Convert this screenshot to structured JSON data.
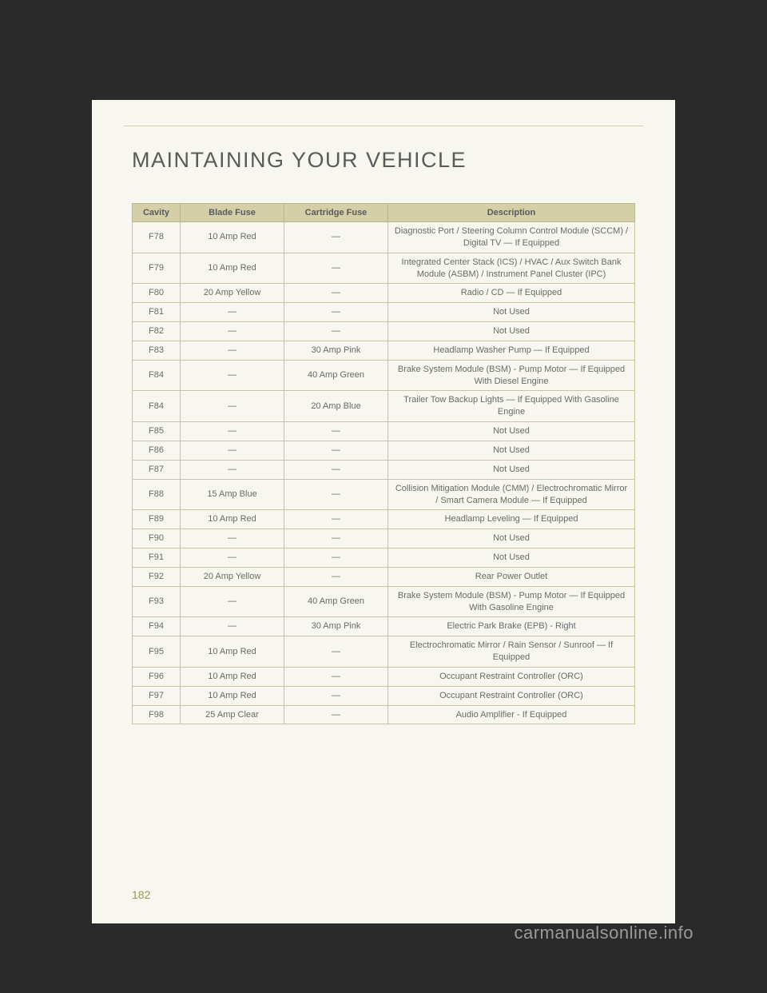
{
  "page": {
    "title": "MAINTAINING YOUR VEHICLE",
    "number": "182",
    "watermark": "carmanualsonline.info"
  },
  "table": {
    "columns": [
      "Cavity",
      "Blade Fuse",
      "Cartridge Fuse",
      "Description"
    ],
    "rows": [
      [
        "F78",
        "10 Amp Red",
        "—",
        "Diagnostic Port / Steering Column Control Module (SCCM) / Digital TV — If Equipped"
      ],
      [
        "F79",
        "10 Amp Red",
        "—",
        "Integrated Center Stack (ICS) / HVAC / Aux Switch Bank Module (ASBM) / Instrument Panel Cluster (IPC)"
      ],
      [
        "F80",
        "20 Amp Yellow",
        "—",
        "Radio / CD — If Equipped"
      ],
      [
        "F81",
        "—",
        "—",
        "Not Used"
      ],
      [
        "F82",
        "—",
        "—",
        "Not Used"
      ],
      [
        "F83",
        "—",
        "30 Amp Pink",
        "Headlamp Washer Pump — If Equipped"
      ],
      [
        "F84",
        "—",
        "40 Amp Green",
        "Brake System Module (BSM) - Pump Motor — If Equipped With Diesel Engine"
      ],
      [
        "F84",
        "—",
        "20 Amp Blue",
        "Trailer Tow Backup Lights — If Equipped With Gasoline Engine"
      ],
      [
        "F85",
        "—",
        "—",
        "Not Used"
      ],
      [
        "F86",
        "—",
        "—",
        "Not Used"
      ],
      [
        "F87",
        "—",
        "—",
        "Not Used"
      ],
      [
        "F88",
        "15 Amp Blue",
        "—",
        "Collision Mitigation Module (CMM) / Electrochromatic Mirror / Smart Camera Module — If Equipped"
      ],
      [
        "F89",
        "10 Amp Red",
        "—",
        "Headlamp Leveling — If Equipped"
      ],
      [
        "F90",
        "—",
        "—",
        "Not Used"
      ],
      [
        "F91",
        "—",
        "—",
        "Not Used"
      ],
      [
        "F92",
        "20 Amp Yellow",
        "—",
        "Rear Power Outlet"
      ],
      [
        "F93",
        "—",
        "40 Amp Green",
        "Brake System Module (BSM) - Pump Motor — If Equipped With Gasoline Engine"
      ],
      [
        "F94",
        "—",
        "30 Amp Pink",
        "Electric Park Brake (EPB) - Right"
      ],
      [
        "F95",
        "10 Amp Red",
        "—",
        "Electrochromatic Mirror / Rain Sensor / Sunroof — If Equipped"
      ],
      [
        "F96",
        "10 Amp Red",
        "—",
        "Occupant Restraint Controller (ORC)"
      ],
      [
        "F97",
        "10 Amp Red",
        "—",
        "Occupant Restraint Controller (ORC)"
      ],
      [
        "F98",
        "25 Amp Clear",
        "—",
        "Audio Amplifier - If Equipped"
      ]
    ]
  }
}
